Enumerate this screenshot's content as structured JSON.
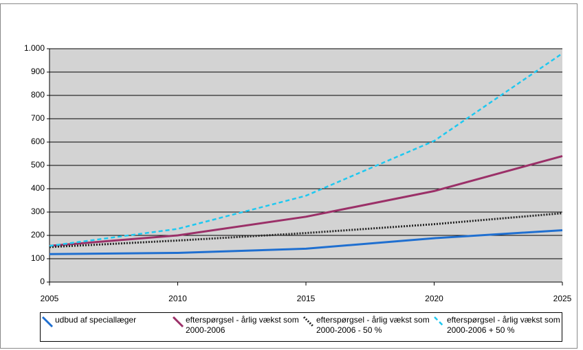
{
  "chart_data": {
    "type": "line",
    "x": [
      2005,
      2010,
      2015,
      2020,
      2025
    ],
    "xlim": [
      2005,
      2025
    ],
    "xticks": [
      2005,
      2010,
      2015,
      2020,
      2025
    ],
    "ylim": [
      0,
      1000
    ],
    "yticks": [
      0,
      100,
      200,
      300,
      400,
      500,
      600,
      700,
      800,
      900,
      {
        "value": 1000,
        "label": "1.000"
      }
    ],
    "grid": true,
    "legend": "bottom",
    "series": [
      {
        "name": "udbud af speciallæger",
        "color": "#1f6fd0",
        "style": "solid",
        "values": [
          120,
          125,
          143,
          188,
          222
        ]
      },
      {
        "name": "efterspørgsel - årlig vækst som 2000-2006",
        "color": "#9b3068",
        "style": "solid",
        "values": [
          155,
          200,
          280,
          390,
          540
        ]
      },
      {
        "name": "efterspørgsel - årlig vækst som 2000-2006 - 50 %",
        "color": "#222222",
        "style": "dotted",
        "values": [
          150,
          178,
          210,
          248,
          295
        ]
      },
      {
        "name": "efterspørgsel - årlig vækst som 2000-2006 + 50 %",
        "color": "#1ec8f0",
        "style": "dashed",
        "values": [
          155,
          228,
          370,
          605,
          980
        ]
      }
    ]
  }
}
